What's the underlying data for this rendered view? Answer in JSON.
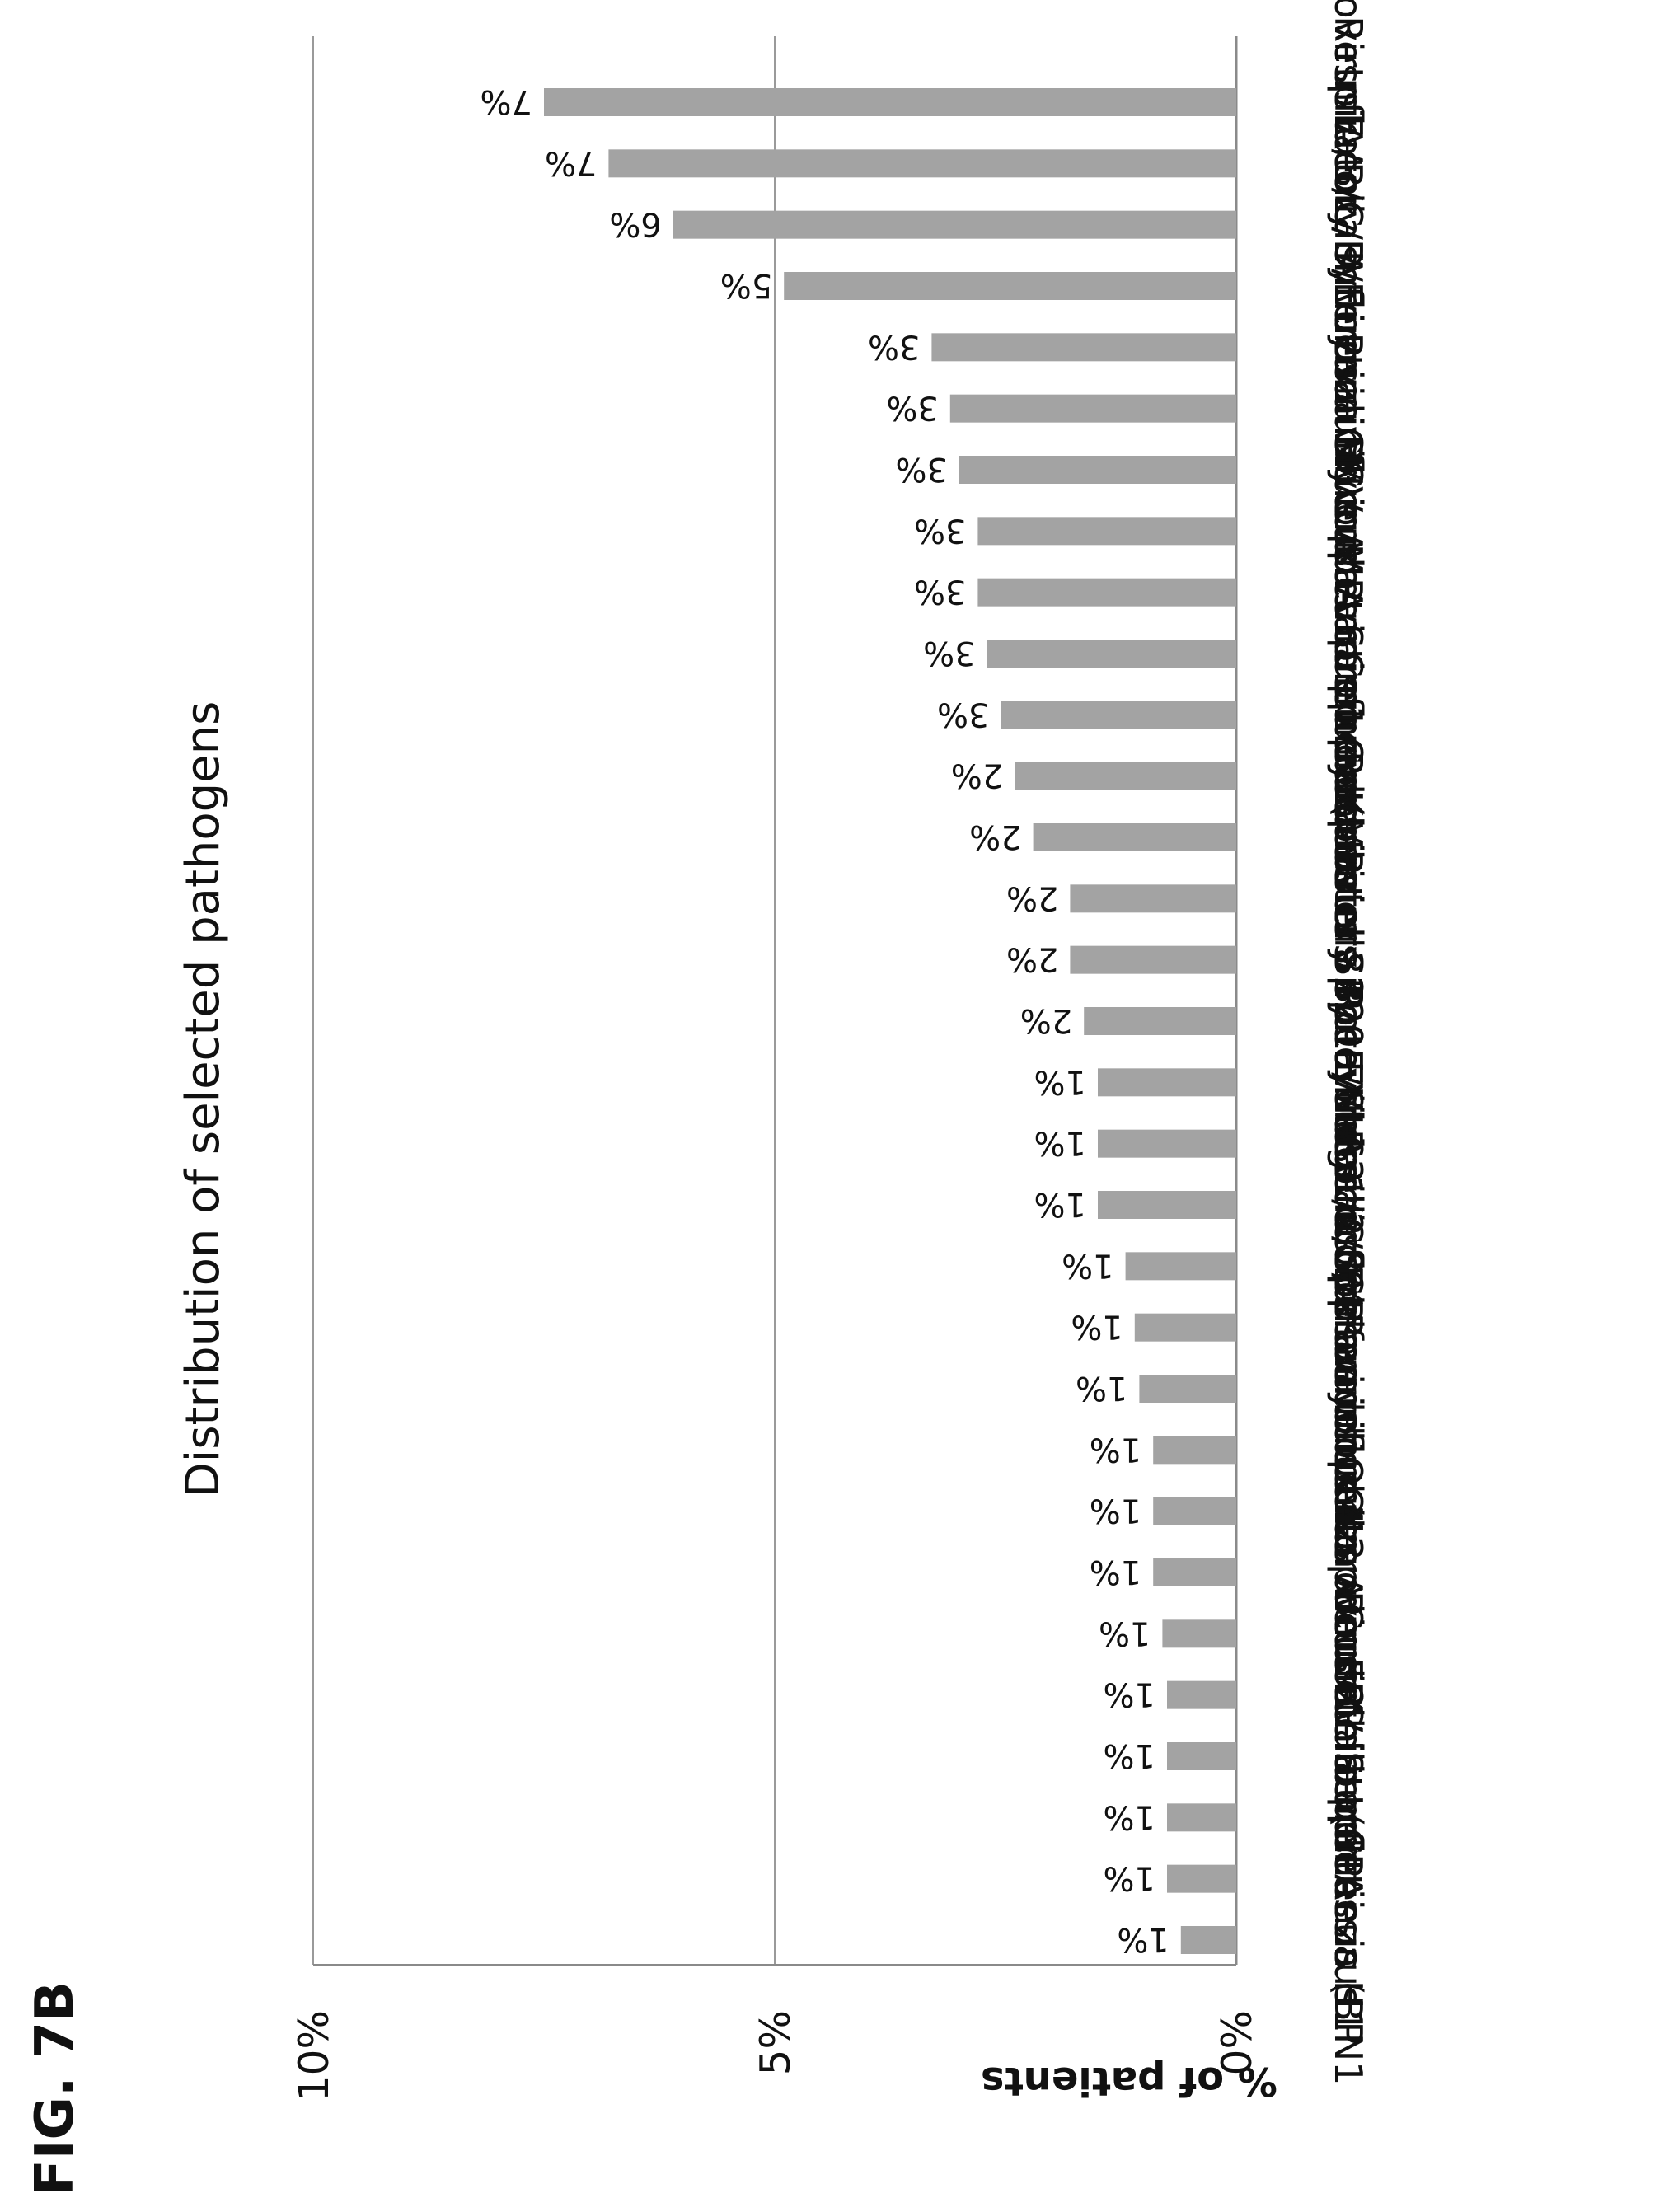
{
  "figure_label": "FIG. 7B",
  "colors": {
    "bar": "#a3a3a3",
    "axis": "#8a8a8a",
    "grid": "#9a9a9a",
    "text": "#111111"
  },
  "chart_data": {
    "type": "bar",
    "orientation": "vertical",
    "title": "Distribution of selected pathogens",
    "xlabel": "",
    "ylabel": "% of patients",
    "ylim": [
      0,
      10
    ],
    "yticks": [
      0,
      5,
      10
    ],
    "ytick_labels": [
      "0%",
      "5%",
      "10%"
    ],
    "grid": true,
    "legend": "none",
    "categories": [
      "Influenza H1N1",
      "Staph Aeurus",
      "Bordetella pertussis (BP",
      "Coxiella burnetii",
      "EBV",
      "Norovirus G II",
      "Chlamydophila pneumoniae (CP",
      "Parainfluenza virus 2",
      "Pseudomonas A",
      "Coronavirus OC43",
      "Parainfluenza virus 4",
      "Enterococcus faecalis",
      "Shigella Spp",
      "Bocavirus 1/2/3/4",
      "Rota Virus",
      "Respiratory syncytial virus B",
      "Coronavirus 229E/NL63",
      "Klebsiella P",
      "Campylobacter Spp",
      "Parainfluenza virus 3",
      "Metapneumovirus",
      "Mycoplasma pneu. (MP",
      "Group A Strep",
      "Parainfluenza virus 1",
      "CMV",
      "Influenza B virus",
      "Enterovirus",
      "Respiratory syncytial virus A",
      "Influenza A virus",
      "E.coli",
      "Adenovirus A/B/C/D/E"
    ],
    "values": [
      0.6,
      0.75,
      0.75,
      0.75,
      0.75,
      0.8,
      0.9,
      0.9,
      0.9,
      1.05,
      1.1,
      1.2,
      1.5,
      1.5,
      1.5,
      1.65,
      1.8,
      1.8,
      2.2,
      2.4,
      2.55,
      2.7,
      2.8,
      2.8,
      3.0,
      3.1,
      3.3,
      4.9,
      6.1,
      6.8,
      7.5
    ],
    "data_labels": [
      "1%",
      "1%",
      "1%",
      "1%",
      "1%",
      "1%",
      "1%",
      "1%",
      "1%",
      "1%",
      "1%",
      "1%",
      "1%",
      "1%",
      "1%",
      "2%",
      "2%",
      "2%",
      "2%",
      "2%",
      "3%",
      "3%",
      "3%",
      "3%",
      "3%",
      "3%",
      "3%",
      "5%",
      "6%",
      "7%",
      "7%"
    ]
  }
}
